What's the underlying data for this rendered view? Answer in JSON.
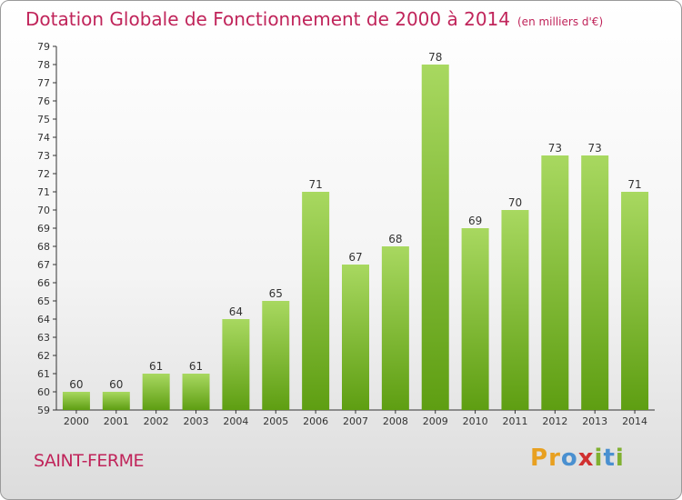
{
  "header": {
    "title": "Dotation Globale de Fonctionnement de 2000 à 2014",
    "unit": "(en milliers d'€)"
  },
  "footer": {
    "town": "SAINT-FERME",
    "logo": {
      "letters": [
        "P",
        "r",
        "o",
        "x",
        "i",
        "t",
        "i"
      ],
      "colors": [
        "#e8a020",
        "#e8a020",
        "#4a90d0",
        "#d03030",
        "#80b030",
        "#4a90d0",
        "#80b030"
      ]
    }
  },
  "colors": {
    "bar_light": "#a8d860",
    "bar_dark": "#5e9e12",
    "title": "#c0245a",
    "axis": "#333333"
  },
  "chart_data": {
    "type": "bar",
    "title": "Dotation Globale de Fonctionnement de 2000 à 2014",
    "subtitle": "(en milliers d'€)",
    "xlabel": "",
    "ylabel": "",
    "categories": [
      "2000",
      "2001",
      "2002",
      "2003",
      "2004",
      "2005",
      "2006",
      "2007",
      "2008",
      "2009",
      "2010",
      "2011",
      "2012",
      "2013",
      "2014"
    ],
    "values": [
      60,
      60,
      61,
      61,
      64,
      65,
      71,
      67,
      68,
      78,
      69,
      70,
      73,
      73,
      71
    ],
    "ylim": [
      59,
      79
    ],
    "ytick_step": 1,
    "grid": false,
    "data_labels": true
  }
}
